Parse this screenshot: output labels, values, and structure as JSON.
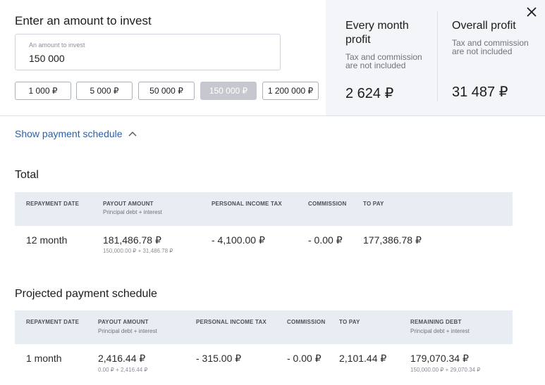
{
  "calculator": {
    "title": "Enter an amount to invest",
    "amount_label": "An amount to invest",
    "amount_value": "150 000",
    "presets": [
      "1 000 ₽",
      "5 000 ₽",
      "50 000 ₽",
      "150 000 ₽",
      "1 200 000 ₽"
    ],
    "active_preset": "150 000 ₽"
  },
  "summary": {
    "monthly": {
      "title": "Every month profit",
      "note": "Tax and commission are not included",
      "value": "2 624 ₽"
    },
    "overall": {
      "title": "Overall profit",
      "note": "Tax and commission are not included",
      "value": "31 487 ₽"
    }
  },
  "schedule_toggle": "Show payment schedule",
  "total": {
    "title": "Total",
    "headers": {
      "date": "REPAYMENT DATE",
      "payout": "PAYOUT AMOUNT",
      "payout_sub": "Principal debt + interest",
      "tax": "PERSONAL INCOME TAX",
      "commission": "COMMISSION",
      "to_pay": "TO PAY"
    },
    "row": {
      "date": "12 month",
      "payout": "181,486.78 ₽",
      "payout_sub": "150,000.00 ₽ + 31,486.78 ₽",
      "tax": "- 4,100.00 ₽",
      "commission": "- 0.00 ₽",
      "to_pay": "177,386.78 ₽"
    }
  },
  "projected": {
    "title": "Projected payment schedule",
    "headers": {
      "date": "REPAYMENT DATE",
      "payout": "PAYOUT AMOUNT",
      "payout_sub": "Principal debt + interest",
      "tax": "PERSONAL INCOME TAX",
      "commission": "COMMISSION",
      "to_pay": "TO PAY",
      "remaining": "REMAINING DEBT",
      "remaining_sub": "Principal debt + interest"
    },
    "row": {
      "date": "1 month",
      "payout": "2,416.44 ₽",
      "payout_sub": "0.00 ₽ + 2,416.44 ₽",
      "tax": "- 315.00 ₽",
      "commission": "- 0.00 ₽",
      "to_pay": "2,101.44 ₽",
      "remaining": "179,070.34 ₽",
      "remaining_sub": "150,000.00 ₽ + 29,070.34 ₽"
    }
  }
}
